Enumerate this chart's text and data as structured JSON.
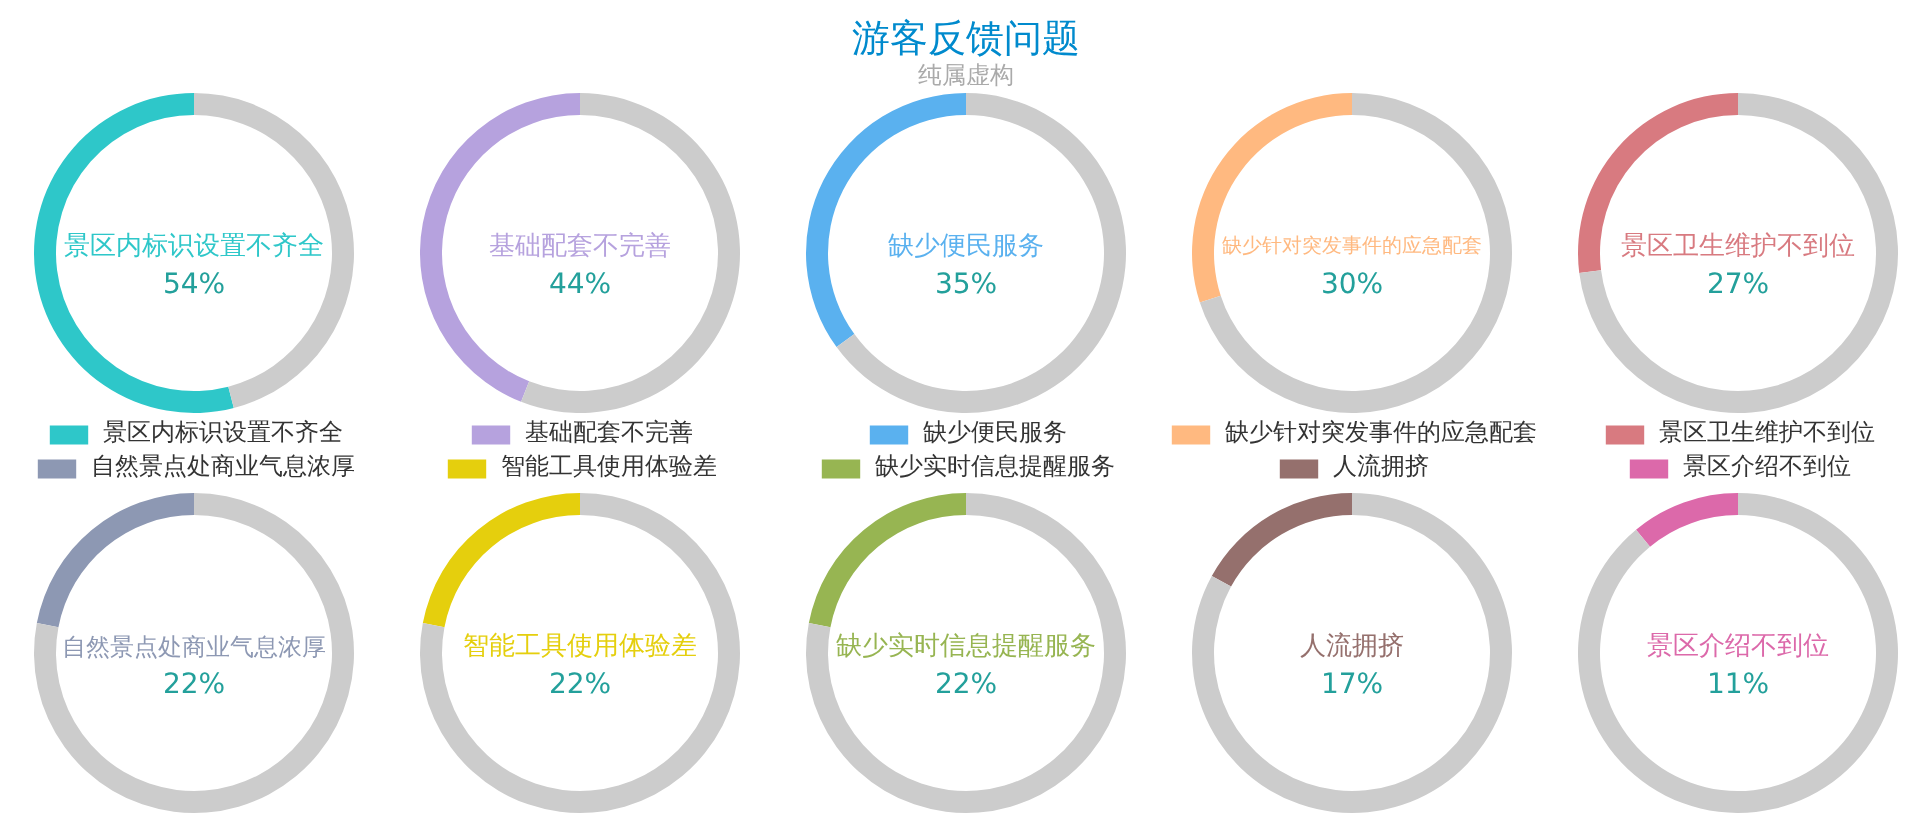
{
  "chart_data": [
    {
      "type": "other",
      "title": "游客反馈问题",
      "subtitle": "纯属虚构"
    },
    {
      "type": "donut",
      "categories": [
        "景区内标识设置不齐全",
        null
      ],
      "values": [
        54,
        46
      ],
      "colors": [
        "#2ec7c9",
        "#cccccc"
      ],
      "value_labels": [
        "54%",
        null
      ],
      "legend": "bottom"
    },
    {
      "type": "donut",
      "categories": [
        "基础配套不完善",
        null
      ],
      "values": [
        44,
        56
      ],
      "colors": [
        "#b6a2de",
        "#cccccc"
      ],
      "value_labels": [
        "44%",
        null
      ],
      "legend": "bottom"
    },
    {
      "type": "donut",
      "categories": [
        "缺少便民服务",
        null
      ],
      "values": [
        35,
        65
      ],
      "colors": [
        "#5ab1ef",
        "#cccccc"
      ],
      "value_labels": [
        "35%",
        null
      ],
      "legend": "bottom"
    },
    {
      "type": "donut",
      "categories": [
        "缺少针对突发事件的应急配套",
        null
      ],
      "values": [
        30,
        70
      ],
      "colors": [
        "#ffb980",
        "#cccccc"
      ],
      "value_labels": [
        "30%",
        null
      ],
      "legend": "bottom"
    },
    {
      "type": "donut",
      "categories": [
        "景区卫生维护不到位",
        null
      ],
      "values": [
        27,
        73
      ],
      "colors": [
        "#d87a80",
        "#cccccc"
      ],
      "value_labels": [
        "27%",
        null
      ],
      "legend": "bottom"
    },
    {
      "type": "donut",
      "categories": [
        "自然景点处商业气息浓厚",
        null
      ],
      "values": [
        22,
        78
      ],
      "colors": [
        "#8d98b3",
        "#cccccc"
      ],
      "value_labels": [
        "22%",
        null
      ],
      "legend": "top"
    },
    {
      "type": "donut",
      "categories": [
        "智能工具使用体验差",
        null
      ],
      "values": [
        22,
        78
      ],
      "colors": [
        "#e5cf0d",
        "#cccccc"
      ],
      "value_labels": [
        "22%",
        null
      ],
      "legend": "top"
    },
    {
      "type": "donut",
      "categories": [
        "缺少实时信息提醒服务",
        null
      ],
      "values": [
        22,
        78
      ],
      "colors": [
        "#97b552",
        "#cccccc"
      ],
      "value_labels": [
        "22%",
        null
      ],
      "legend": "top"
    },
    {
      "type": "donut",
      "categories": [
        "人流拥挤",
        null
      ],
      "values": [
        17,
        83
      ],
      "colors": [
        "#95706d",
        "#cccccc"
      ],
      "value_labels": [
        "17%",
        null
      ],
      "legend": "top"
    },
    {
      "type": "donut",
      "categories": [
        "景区介绍不到位",
        null
      ],
      "values": [
        11,
        89
      ],
      "colors": [
        "#dc69aa",
        "#cccccc"
      ],
      "value_labels": [
        "11%",
        null
      ],
      "legend": "top"
    }
  ]
}
